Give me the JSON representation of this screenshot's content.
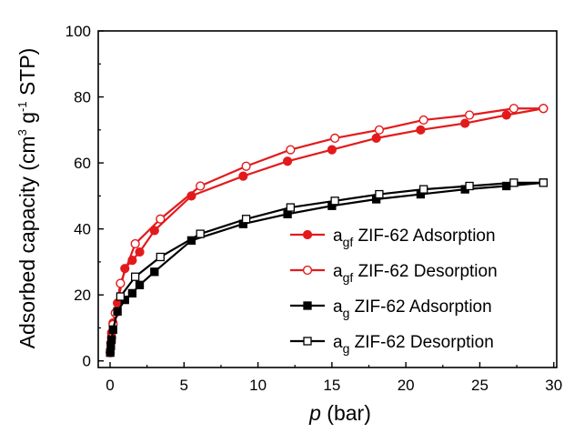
{
  "chart_data": {
    "type": "scatter",
    "xlabel": "p (bar)",
    "xlabel_var": "p",
    "xlabel_unit": " (bar)",
    "ylabel": "Adsorbed capacity (cm3 g-1 STP)",
    "ylabel_parts": {
      "a": "Adsorbed capacity (cm",
      "b": "3",
      "c": " g",
      "d": "-1",
      "e": " STP)"
    },
    "xlim": [
      -0.8,
      30.2
    ],
    "ylim": [
      -2,
      100
    ],
    "xticks": [
      0,
      5,
      10,
      15,
      20,
      25,
      30
    ],
    "yticks": [
      0,
      20,
      40,
      60,
      80,
      100
    ],
    "legend_position": "lower-right",
    "series": [
      {
        "name": "agf ZIF-62 Adsorption",
        "label_prefix": "a",
        "label_sub": "gf",
        "label_rest": "ZIF-62 Adsorption",
        "color": "#e31a1c",
        "marker": "circle",
        "filled": true,
        "x": [
          0.01,
          0.05,
          0.1,
          0.2,
          0.5,
          1.0,
          1.5,
          2.0,
          3.0,
          5.5,
          9.0,
          12.0,
          15.0,
          18.0,
          21.0,
          24.0,
          26.8,
          29.3
        ],
        "y": [
          2.5,
          5.5,
          8.5,
          11.5,
          17.5,
          28.0,
          30.5,
          33.0,
          39.5,
          50.0,
          56.0,
          60.5,
          64.0,
          67.5,
          70.0,
          72.0,
          74.5,
          76.5
        ]
      },
      {
        "name": "agf ZIF-62 Desorption",
        "label_prefix": "a",
        "label_sub": "gf",
        "label_rest": "ZIF-62 Desorption",
        "color": "#e31a1c",
        "marker": "circle",
        "filled": false,
        "x": [
          29.3,
          27.3,
          24.3,
          21.2,
          18.2,
          15.2,
          12.2,
          9.2,
          6.1,
          3.4,
          1.7,
          0.7,
          0.35,
          0.2,
          0.1
        ],
        "y": [
          76.5,
          76.5,
          74.5,
          73.0,
          70.0,
          67.5,
          64.0,
          59.0,
          53.0,
          43.0,
          35.5,
          23.5,
          14.5,
          11.0,
          7.0
        ]
      },
      {
        "name": "ag ZIF-62 Adsorption",
        "label_prefix": "a",
        "label_sub": "g",
        "label_rest": "ZIF-62 Adsorption",
        "color": "#000000",
        "marker": "square",
        "filled": true,
        "x": [
          0.01,
          0.05,
          0.1,
          0.2,
          0.5,
          1.0,
          1.5,
          2.0,
          3.0,
          5.5,
          9.0,
          12.0,
          15.0,
          18.0,
          21.0,
          24.0,
          26.8,
          29.3
        ],
        "y": [
          2.5,
          4.5,
          6.5,
          9.5,
          15.0,
          18.5,
          20.5,
          23.0,
          27.0,
          36.5,
          41.5,
          44.5,
          47.0,
          49.0,
          50.5,
          52.0,
          53.0,
          54.0
        ]
      },
      {
        "name": "ag ZIF-62 Desorption",
        "label_prefix": "a",
        "label_sub": "g",
        "label_rest": "ZIF-62 Desorption",
        "color": "#000000",
        "marker": "square",
        "filled": false,
        "x": [
          29.3,
          27.3,
          24.3,
          21.2,
          18.2,
          15.2,
          12.2,
          9.2,
          6.1,
          3.4,
          1.7,
          0.7
        ],
        "y": [
          54.0,
          54.0,
          53.0,
          52.0,
          50.5,
          48.5,
          46.5,
          43.0,
          38.5,
          31.5,
          25.5,
          19.5
        ]
      }
    ]
  }
}
